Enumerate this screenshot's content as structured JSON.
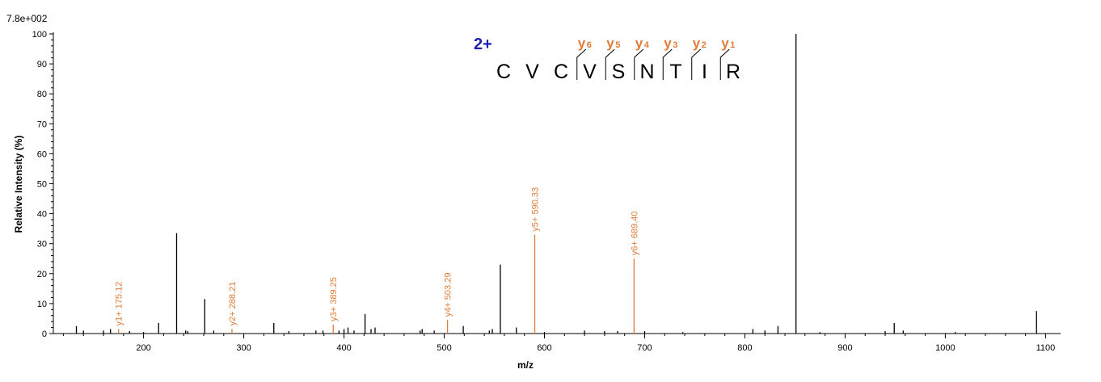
{
  "chart_data": {
    "type": "bar",
    "title": "",
    "intensity_scale": "7.8e+002",
    "xlabel": "m/z",
    "ylabel": "Relative   Intensity (%)",
    "xlim": [
      110,
      1115
    ],
    "ylim": [
      0,
      100
    ],
    "x_ticks": [
      200,
      300,
      400,
      500,
      600,
      700,
      800,
      900,
      1000,
      1100
    ],
    "y_ticks": [
      0,
      10,
      20,
      30,
      40,
      50,
      60,
      70,
      80,
      90,
      100
    ],
    "grid": false,
    "colors": {
      "peak": "#000000",
      "annotated": "#e07b39",
      "charge": "#1f1fb4"
    },
    "peaks": [
      {
        "mz": 133,
        "rel": 2.5
      },
      {
        "mz": 140,
        "rel": 1.0
      },
      {
        "mz": 160,
        "rel": 1.0
      },
      {
        "mz": 167,
        "rel": 1.5
      },
      {
        "mz": 186,
        "rel": 0.8
      },
      {
        "mz": 200,
        "rel": 0.5
      },
      {
        "mz": 215,
        "rel": 3.5
      },
      {
        "mz": 233,
        "rel": 33.5
      },
      {
        "mz": 242,
        "rel": 1.0
      },
      {
        "mz": 244,
        "rel": 0.8
      },
      {
        "mz": 261,
        "rel": 11.5
      },
      {
        "mz": 270,
        "rel": 1.0
      },
      {
        "mz": 330,
        "rel": 3.5
      },
      {
        "mz": 345,
        "rel": 0.8
      },
      {
        "mz": 372,
        "rel": 1.0
      },
      {
        "mz": 379,
        "rel": 1.0
      },
      {
        "mz": 395,
        "rel": 1.0
      },
      {
        "mz": 400,
        "rel": 1.5
      },
      {
        "mz": 404,
        "rel": 2.0
      },
      {
        "mz": 410,
        "rel": 1.0
      },
      {
        "mz": 421,
        "rel": 6.5
      },
      {
        "mz": 427,
        "rel": 1.5
      },
      {
        "mz": 431,
        "rel": 2.0
      },
      {
        "mz": 476,
        "rel": 1.0
      },
      {
        "mz": 478,
        "rel": 1.5
      },
      {
        "mz": 490,
        "rel": 1.0
      },
      {
        "mz": 519,
        "rel": 2.5
      },
      {
        "mz": 545,
        "rel": 1.0
      },
      {
        "mz": 548,
        "rel": 1.5
      },
      {
        "mz": 556,
        "rel": 23.0
      },
      {
        "mz": 572,
        "rel": 2.0
      },
      {
        "mz": 600,
        "rel": 0.5
      },
      {
        "mz": 640,
        "rel": 1.0
      },
      {
        "mz": 660,
        "rel": 0.8
      },
      {
        "mz": 673,
        "rel": 0.8
      },
      {
        "mz": 700,
        "rel": 0.8
      },
      {
        "mz": 738,
        "rel": 0.5
      },
      {
        "mz": 808,
        "rel": 1.5
      },
      {
        "mz": 820,
        "rel": 1.0
      },
      {
        "mz": 833,
        "rel": 2.5
      },
      {
        "mz": 851,
        "rel": 100.0
      },
      {
        "mz": 875,
        "rel": 0.5
      },
      {
        "mz": 940,
        "rel": 0.8
      },
      {
        "mz": 949,
        "rel": 3.5
      },
      {
        "mz": 958,
        "rel": 1.0
      },
      {
        "mz": 1010,
        "rel": 0.5
      },
      {
        "mz": 1091,
        "rel": 7.5
      }
    ],
    "annotations": [
      {
        "label": "y1+ 175.12",
        "mz": 175.12,
        "rel": 1.5
      },
      {
        "label": "y2+ 288.21",
        "mz": 288.21,
        "rel": 1.5
      },
      {
        "label": "y3+ 389.25",
        "mz": 389.25,
        "rel": 3.0
      },
      {
        "label": "y4+ 503.29",
        "mz": 503.29,
        "rel": 4.5
      },
      {
        "label": "y5+ 590.33",
        "mz": 590.33,
        "rel": 33.0
      },
      {
        "label": "y6+ 689.40",
        "mz": 689.4,
        "rel": 25.0
      }
    ],
    "peptide": {
      "charge": "2+",
      "sequence": [
        "C",
        "V",
        "C",
        "V",
        "S",
        "N",
        "T",
        "I",
        "R"
      ],
      "y_ions": [
        {
          "main": "y",
          "sub": "6"
        },
        {
          "main": "y",
          "sub": "5"
        },
        {
          "main": "y",
          "sub": "4"
        },
        {
          "main": "y",
          "sub": "3"
        },
        {
          "main": "y",
          "sub": "2"
        },
        {
          "main": "y",
          "sub": "1"
        }
      ]
    }
  }
}
